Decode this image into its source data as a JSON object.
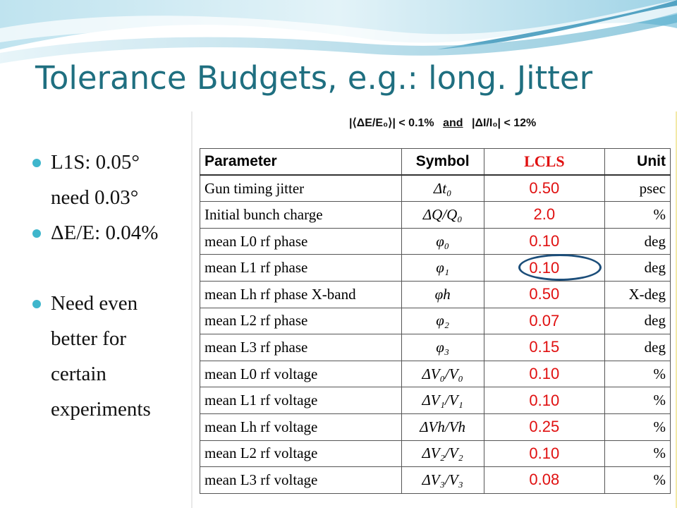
{
  "slide": {
    "title": "Tolerance Budgets, e.g.: long. Jitter"
  },
  "bullets": [
    {
      "lines": [
        "L1S: 0.05°",
        "need 0.03°"
      ]
    },
    {
      "lines": [
        "ΔE/E: 0.04%"
      ]
    },
    {
      "lines": [
        "Need even",
        "better for",
        "certain",
        "experiments"
      ]
    }
  ],
  "table": {
    "condition": {
      "part1": "|⟨ΔE/E₀⟩| < 0.1%",
      "and": "and",
      "part2": "|ΔI/I₀| < 12%"
    },
    "headers": {
      "parameter": "Parameter",
      "symbol": "Symbol",
      "lcls": "LCLS",
      "unit": "Unit"
    },
    "rows": [
      {
        "parameter": "Gun timing jitter",
        "symbol": "Δt₀",
        "lcls": "0.50",
        "unit": "psec"
      },
      {
        "parameter": "Initial bunch charge",
        "symbol": "ΔQ/Q₀",
        "lcls": "2.0",
        "unit": "%"
      },
      {
        "parameter": "mean L0 rf phase",
        "symbol": "φ₀",
        "lcls": "0.10",
        "unit": "deg"
      },
      {
        "parameter": "mean L1 rf phase",
        "symbol": "φ₁",
        "lcls": "0.10",
        "unit": "deg"
      },
      {
        "parameter": "mean Lh rf phase X-band",
        "symbol": "φh",
        "lcls": "0.50",
        "unit": "X-deg"
      },
      {
        "parameter": "mean L2 rf phase",
        "symbol": "φ₂",
        "lcls": "0.07",
        "unit": "deg"
      },
      {
        "parameter": "mean L3 rf phase",
        "symbol": "φ₃",
        "lcls": "0.15",
        "unit": "deg"
      },
      {
        "parameter": "mean L0 rf voltage",
        "symbol": "ΔV₀/V₀",
        "lcls": "0.10",
        "unit": "%"
      },
      {
        "parameter": "mean L1 rf voltage",
        "symbol": "ΔV₁/V₁",
        "lcls": "0.10",
        "unit": "%"
      },
      {
        "parameter": "mean Lh rf voltage",
        "symbol": "ΔVh/Vh",
        "lcls": "0.25",
        "unit": "%"
      },
      {
        "parameter": "mean L2 rf voltage",
        "symbol": "ΔV₂/V₂",
        "lcls": "0.10",
        "unit": "%"
      },
      {
        "parameter": "mean L3 rf voltage",
        "symbol": "ΔV₃/V₃",
        "lcls": "0.08",
        "unit": "%"
      }
    ]
  },
  "colors": {
    "title": "#1f6f80",
    "bullet": "#3fb6cc",
    "lcls_value": "#e01010",
    "highlight_circle": "#1c4e7a"
  }
}
